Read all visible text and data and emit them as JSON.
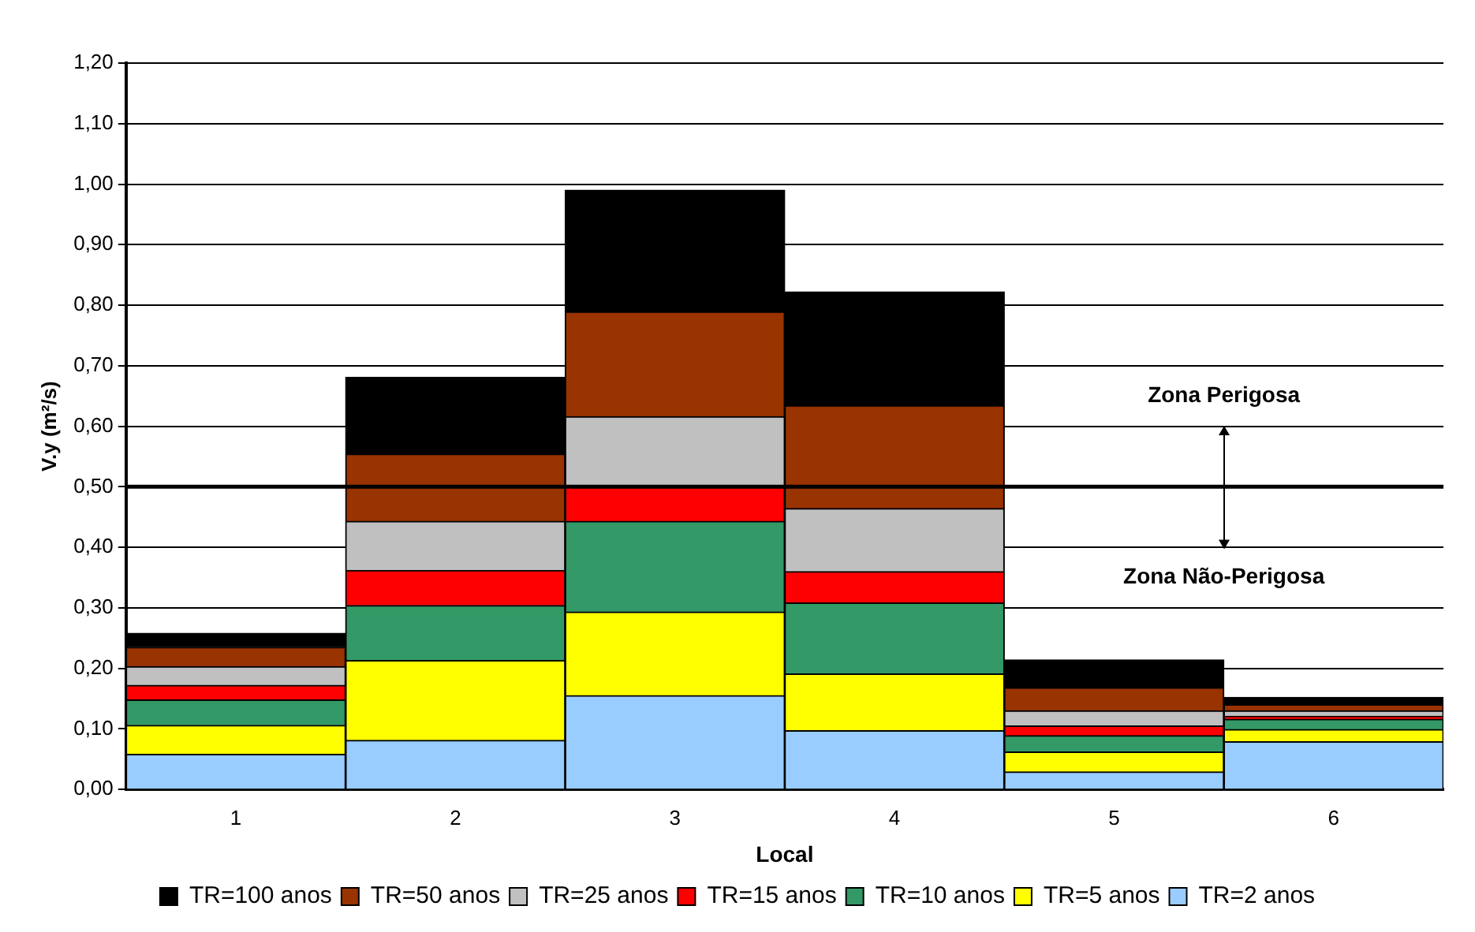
{
  "chart_data": {
    "type": "bar",
    "stacked": true,
    "xlabel": "Local",
    "ylabel": "V.y (m²/s)",
    "categories": [
      "1",
      "2",
      "3",
      "4",
      "5",
      "6"
    ],
    "series": [
      {
        "name": "TR=2 anos",
        "color": "#99ccff",
        "values": [
          0.058,
          0.081,
          0.155,
          0.097,
          0.029,
          0.079
        ]
      },
      {
        "name": "TR=5 anos",
        "color": "#ffff00",
        "values": [
          0.048,
          0.132,
          0.138,
          0.094,
          0.033,
          0.02
        ]
      },
      {
        "name": "TR=10 anos",
        "color": "#339966",
        "values": [
          0.042,
          0.091,
          0.15,
          0.117,
          0.027,
          0.017
        ]
      },
      {
        "name": "TR=15 anos",
        "color": "#ff0000",
        "values": [
          0.024,
          0.058,
          0.057,
          0.052,
          0.016,
          0.005
        ]
      },
      {
        "name": "TR=25 anos",
        "color": "#c0c0c0",
        "values": [
          0.031,
          0.081,
          0.116,
          0.104,
          0.025,
          0.009
        ]
      },
      {
        "name": "TR=50 anos",
        "color": "#993300",
        "values": [
          0.032,
          0.111,
          0.173,
          0.17,
          0.038,
          0.01
        ]
      },
      {
        "name": "TR=100 anos",
        "color": "#000000",
        "values": [
          0.023,
          0.127,
          0.201,
          0.188,
          0.046,
          0.012
        ]
      }
    ],
    "ylim": [
      0,
      1.2
    ],
    "yticks": [
      {
        "value": 0,
        "label": "0,00"
      },
      {
        "value": 0.1,
        "label": "0,10"
      },
      {
        "value": 0.2,
        "label": "0,20"
      },
      {
        "value": 0.3,
        "label": "0,30"
      },
      {
        "value": 0.4,
        "label": "0,40"
      },
      {
        "value": 0.5,
        "label": "0,50"
      },
      {
        "value": 0.6,
        "label": "0,60"
      },
      {
        "value": 0.7,
        "label": "0,70"
      },
      {
        "value": 0.8,
        "label": "0,80"
      },
      {
        "value": 0.9,
        "label": "0,90"
      },
      {
        "value": 1,
        "label": "1,00"
      },
      {
        "value": 1.1,
        "label": "1,10"
      },
      {
        "value": 1.2,
        "label": "1,20"
      }
    ],
    "grid": "y",
    "legend": "bottom",
    "ref_lines": [
      {
        "axis": "y",
        "value": 0.5
      }
    ],
    "annotations": [
      "Zona Perigosa",
      "Zona Não-Perigosa"
    ]
  }
}
